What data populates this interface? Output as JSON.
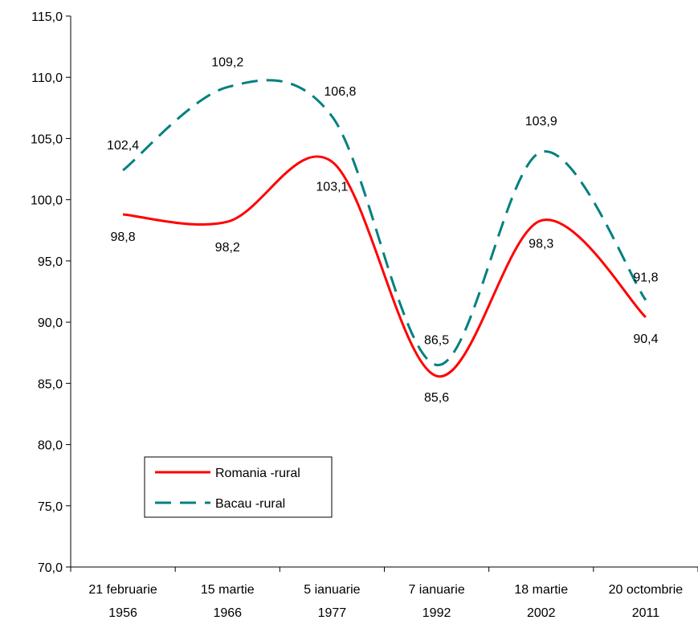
{
  "chart_data": {
    "type": "line",
    "title": "",
    "xlabel": "",
    "ylabel": "",
    "categories": [
      [
        "21 februarie",
        "1956"
      ],
      [
        "15 martie",
        "1966"
      ],
      [
        "5 ianuarie",
        "1977"
      ],
      [
        "7 ianuarie",
        "1992"
      ],
      [
        "18 martie",
        "2002"
      ],
      [
        "20 octombrie",
        "2011"
      ]
    ],
    "ylim": [
      70,
      115
    ],
    "yticks": [
      "70,0",
      "75,0",
      "80,0",
      "85,0",
      "90,0",
      "95,0",
      "100,0",
      "105,0",
      "110,0",
      "115,0"
    ],
    "grid": false,
    "legend_position": "bottom-left",
    "series": [
      {
        "name": "Romania -rural",
        "values": [
          98.8,
          98.2,
          103.1,
          85.6,
          98.3,
          90.4
        ],
        "labels": [
          "98,8",
          "98,2",
          "103,1",
          "85,6",
          "98,3",
          "90,4"
        ],
        "color": "#ff0000",
        "style": "solid"
      },
      {
        "name": "Bacau -rural",
        "values": [
          102.4,
          109.2,
          106.8,
          86.5,
          103.9,
          91.8
        ],
        "labels": [
          "102,4",
          "109,2",
          "106,8",
          "86,5",
          "103,9",
          "91,8"
        ],
        "color": "#008080",
        "style": "dashed"
      }
    ]
  }
}
